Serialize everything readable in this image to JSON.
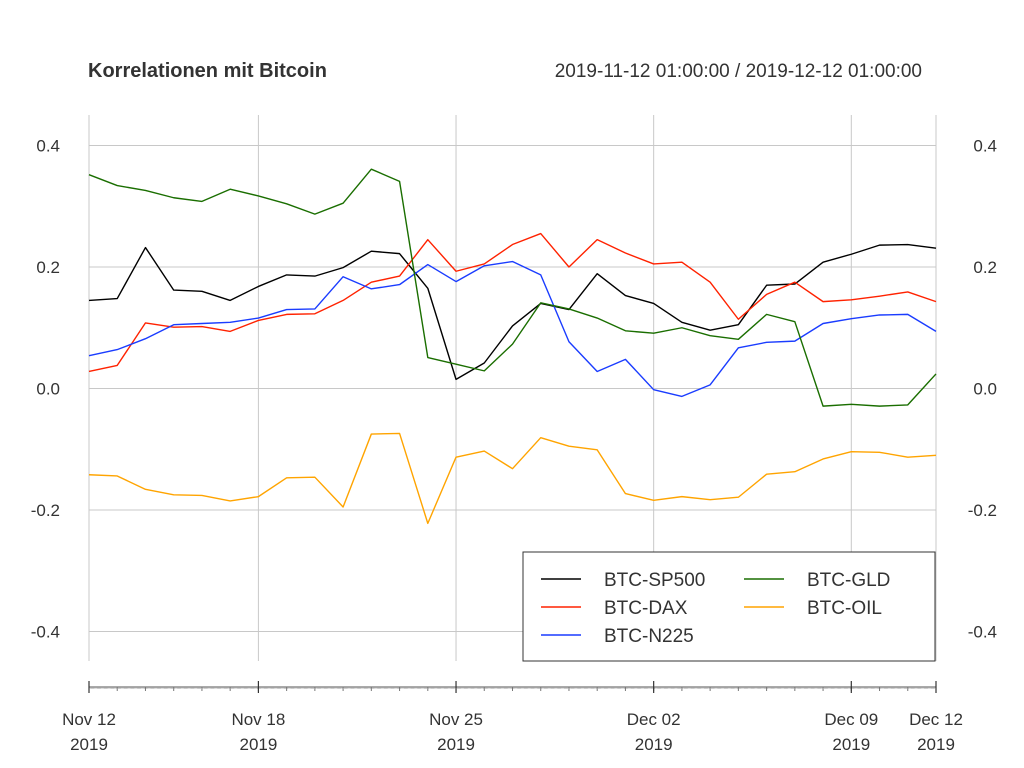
{
  "chart_data": {
    "type": "line",
    "title": "Korrelationen mit Bitcoin",
    "range_label": "2019-11-12 01:00:00 / 2019-12-12 01:00:00",
    "x": [
      "2019-11-12",
      "2019-11-13",
      "2019-11-14",
      "2019-11-15",
      "2019-11-16",
      "2019-11-17",
      "2019-11-18",
      "2019-11-19",
      "2019-11-20",
      "2019-11-21",
      "2019-11-22",
      "2019-11-23",
      "2019-11-24",
      "2019-11-25",
      "2019-11-26",
      "2019-11-27",
      "2019-11-28",
      "2019-11-29",
      "2019-11-30",
      "2019-12-01",
      "2019-12-02",
      "2019-12-03",
      "2019-12-04",
      "2019-12-05",
      "2019-12-06",
      "2019-12-07",
      "2019-12-08",
      "2019-12-09",
      "2019-12-10",
      "2019-12-11",
      "2019-12-12"
    ],
    "x_ticks": [
      {
        "date": "2019-11-12",
        "line1": "Nov 12",
        "line2": "2019"
      },
      {
        "date": "2019-11-18",
        "line1": "Nov 18",
        "line2": "2019"
      },
      {
        "date": "2019-11-25",
        "line1": "Nov 25",
        "line2": "2019"
      },
      {
        "date": "2019-12-02",
        "line1": "Dec 02",
        "line2": "2019"
      },
      {
        "date": "2019-12-09",
        "line1": "Dec 09",
        "line2": "2019"
      },
      {
        "date": "2019-12-12",
        "line1": "Dec 12",
        "line2": "2019"
      }
    ],
    "y_ticks": [
      "0.4",
      "0.2",
      "0.0",
      "-0.2",
      "-0.4"
    ],
    "ylim": [
      -0.45,
      0.45
    ],
    "grid": true,
    "legend_position": "bottom-right",
    "series": [
      {
        "name": "BTC-SP500",
        "color": "#000000",
        "values": [
          0.145,
          0.148,
          0.232,
          0.162,
          0.16,
          0.145,
          0.168,
          0.187,
          0.185,
          0.199,
          0.226,
          0.222,
          0.165,
          0.015,
          0.042,
          0.103,
          0.14,
          0.13,
          0.189,
          0.153,
          0.14,
          0.109,
          0.096,
          0.105,
          0.17,
          0.172,
          0.208,
          0.221,
          0.236,
          0.237,
          0.231
        ]
      },
      {
        "name": "BTC-DAX",
        "color": "#ff2200",
        "values": [
          0.028,
          0.038,
          0.108,
          0.101,
          0.102,
          0.094,
          0.112,
          0.122,
          0.123,
          0.145,
          0.175,
          0.185,
          0.245,
          0.193,
          0.205,
          0.237,
          0.255,
          0.2,
          0.245,
          0.223,
          0.205,
          0.208,
          0.175,
          0.114,
          0.155,
          0.175,
          0.143,
          0.146,
          0.152,
          0.159,
          0.143
        ]
      },
      {
        "name": "BTC-N225",
        "color": "#1a3cff",
        "values": [
          0.054,
          0.064,
          0.082,
          0.105,
          0.107,
          0.109,
          0.116,
          0.13,
          0.131,
          0.184,
          0.164,
          0.171,
          0.204,
          0.176,
          0.202,
          0.209,
          0.187,
          0.077,
          0.028,
          0.048,
          -0.002,
          -0.013,
          0.006,
          0.067,
          0.076,
          0.078,
          0.107,
          0.115,
          0.121,
          0.122,
          0.094
        ]
      },
      {
        "name": "BTC-GLD",
        "color": "#1a6e00",
        "values": [
          0.352,
          0.334,
          0.326,
          0.314,
          0.308,
          0.328,
          0.317,
          0.304,
          0.287,
          0.305,
          0.361,
          0.341,
          0.051,
          0.04,
          0.029,
          0.073,
          0.141,
          0.131,
          0.116,
          0.095,
          0.091,
          0.1,
          0.087,
          0.081,
          0.122,
          0.11,
          -0.029,
          -0.026,
          -0.029,
          -0.027,
          0.024
        ]
      },
      {
        "name": "BTC-OIL",
        "color": "#ffa400",
        "values": [
          -0.142,
          -0.144,
          -0.166,
          -0.175,
          -0.176,
          -0.185,
          -0.178,
          -0.147,
          -0.146,
          -0.195,
          -0.075,
          -0.074,
          -0.222,
          -0.113,
          -0.103,
          -0.132,
          -0.081,
          -0.095,
          -0.101,
          -0.173,
          -0.184,
          -0.178,
          -0.183,
          -0.179,
          -0.141,
          -0.137,
          -0.116,
          -0.104,
          -0.105,
          -0.113,
          -0.11
        ]
      }
    ]
  }
}
